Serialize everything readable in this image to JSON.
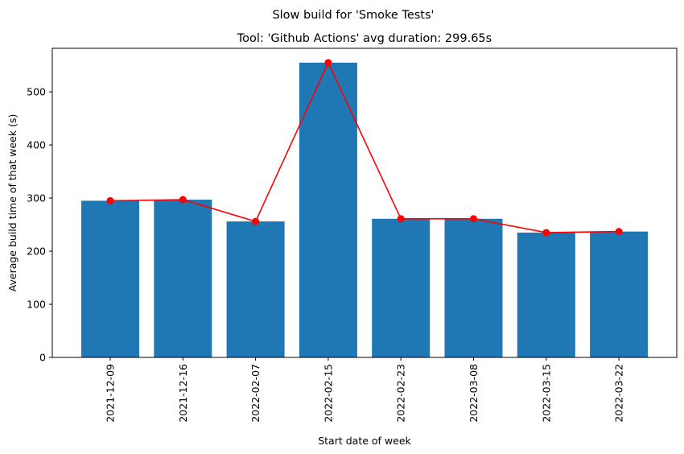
{
  "chart_data": {
    "type": "bar",
    "suptitle": "Slow build for 'Smoke Tests'",
    "title": "Tool: 'Github Actions' avg duration: 299.65s",
    "xlabel": "Start date of week",
    "ylabel": "Average build time of that week (s)",
    "categories": [
      "2021-12-09",
      "2021-12-16",
      "2022-02-07",
      "2022-02-15",
      "2022-02-23",
      "2022-03-08",
      "2022-03-15",
      "2022-03-22"
    ],
    "values": [
      295,
      297,
      256,
      555,
      261,
      261,
      235,
      237
    ],
    "ylim": [
      0,
      582
    ],
    "yticks": [
      0,
      100,
      200,
      300,
      400,
      500
    ],
    "grid": false,
    "bar_color": "#1f77b4",
    "line_color": "#ff0000",
    "line_overlay": true
  }
}
